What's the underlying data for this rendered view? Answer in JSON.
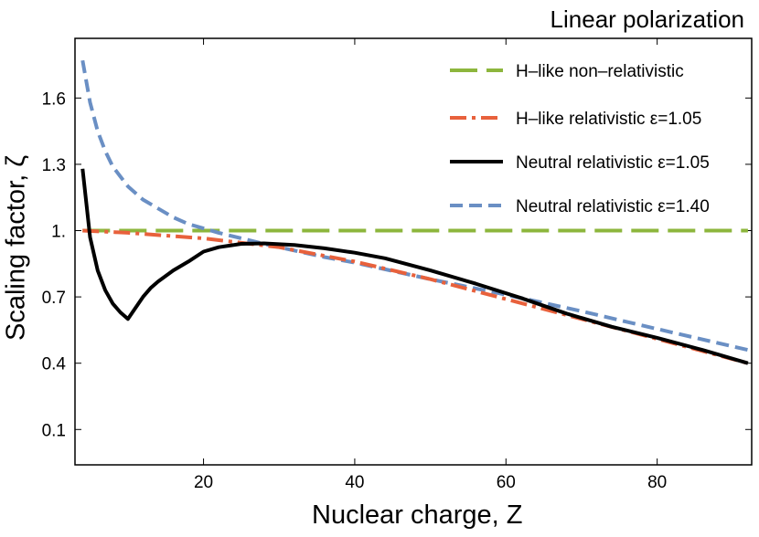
{
  "chart_data": {
    "type": "line",
    "title": "Linear polarization",
    "xlabel": "Nuclear charge, Z",
    "ylabel": "Scaling factor, ζ",
    "xlim": [
      3,
      92.5
    ],
    "ylim": [
      -0.06,
      1.87
    ],
    "xticks": [
      20,
      40,
      60,
      80
    ],
    "xtick_labels": [
      "20",
      "40",
      "60",
      "80"
    ],
    "yticks": [
      0.1,
      0.4,
      0.7,
      1.0,
      1.3,
      1.6
    ],
    "ytick_labels": [
      "0.1",
      "0.4",
      "0.7",
      "1.",
      "1.3",
      "1.6"
    ],
    "grid": false,
    "legend_position": "top-right",
    "series": [
      {
        "name": "H–like non–relativistic",
        "color": "#8db63d",
        "style": "long-dash",
        "x": [
          4,
          92
        ],
        "y": [
          1.0,
          1.0
        ]
      },
      {
        "name": "H–like relativistic ε=1.05",
        "color": "#e8613c",
        "style": "dash-dot",
        "x": [
          4,
          10,
          20,
          30,
          40,
          50,
          60,
          70,
          80,
          92
        ],
        "y": [
          1.0,
          0.99,
          0.965,
          0.925,
          0.86,
          0.78,
          0.69,
          0.6,
          0.51,
          0.4
        ]
      },
      {
        "name": "Neutral relativistic ε=1.05",
        "color": "#000000",
        "style": "solid",
        "x": [
          4,
          5,
          6,
          7,
          8,
          9,
          10,
          11,
          12,
          13,
          14,
          16,
          18,
          20,
          22,
          25,
          28,
          32,
          36,
          40,
          44,
          50,
          56,
          62,
          68,
          74,
          80,
          86,
          92
        ],
        "y": [
          1.28,
          0.97,
          0.82,
          0.73,
          0.67,
          0.63,
          0.6,
          0.65,
          0.7,
          0.74,
          0.77,
          0.82,
          0.86,
          0.905,
          0.925,
          0.94,
          0.942,
          0.935,
          0.92,
          0.9,
          0.875,
          0.82,
          0.76,
          0.695,
          0.625,
          0.565,
          0.515,
          0.46,
          0.4
        ]
      },
      {
        "name": "Neutral relativistic ε=1.40",
        "color": "#6a8fc4",
        "style": "short-dash",
        "x": [
          4,
          5,
          6,
          7,
          8,
          10,
          12,
          14,
          16,
          18,
          20,
          22,
          25,
          28,
          32,
          36,
          40,
          50,
          60,
          70,
          80,
          92
        ],
        "y": [
          1.77,
          1.58,
          1.45,
          1.36,
          1.29,
          1.2,
          1.14,
          1.1,
          1.06,
          1.03,
          1.01,
          0.99,
          0.965,
          0.94,
          0.91,
          0.88,
          0.855,
          0.78,
          0.71,
          0.635,
          0.555,
          0.46
        ]
      }
    ]
  }
}
